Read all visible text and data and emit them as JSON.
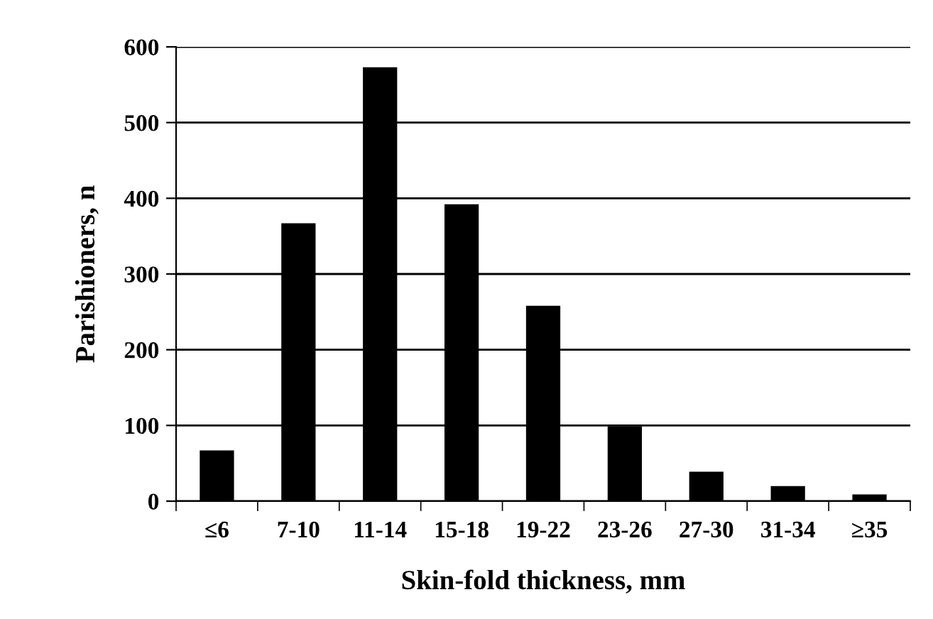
{
  "chart_data": {
    "type": "bar",
    "xlabel": "Skin-fold thickness, mm",
    "ylabel": "Parishioners, n",
    "categories": [
      "≤6",
      "7-10",
      "11-14",
      "15-18",
      "19-22",
      "23-26",
      "27-30",
      "31-34",
      "≥35"
    ],
    "values": [
      67,
      367,
      573,
      392,
      258,
      99,
      39,
      20,
      9
    ],
    "color": "#000000",
    "ylim": [
      0,
      600
    ],
    "yticks": [
      0,
      100,
      200,
      300,
      400,
      500,
      600
    ],
    "grid": "y",
    "legend": false
  }
}
